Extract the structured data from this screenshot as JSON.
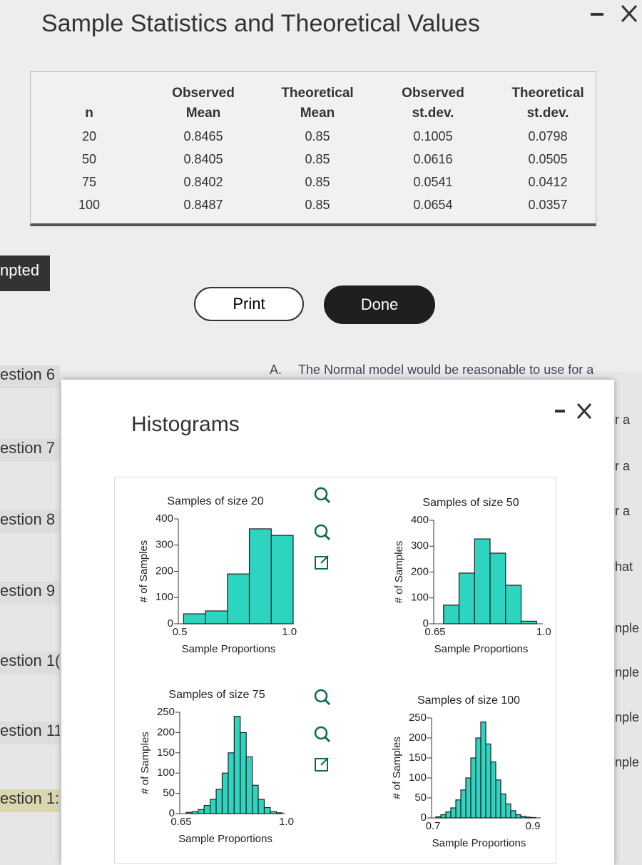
{
  "stats_window": {
    "title": "Sample Statistics and Theoretical Values",
    "table": {
      "header": [
        [
          "n"
        ],
        [
          "Observed",
          "Mean"
        ],
        [
          "Theoretical",
          "Mean"
        ],
        [
          "Observed",
          "st.dev."
        ],
        [
          "Theoretical",
          "st.dev."
        ]
      ],
      "rows": [
        [
          "20",
          "0.8465",
          "0.85",
          "0.1005",
          "0.0798"
        ],
        [
          "50",
          "0.8405",
          "0.85",
          "0.0616",
          "0.0505"
        ],
        [
          "75",
          "0.8402",
          "0.85",
          "0.0541",
          "0.0412"
        ],
        [
          "100",
          "0.8487",
          "0.85",
          "0.0654",
          "0.0357"
        ]
      ]
    },
    "buttons": [
      "Print",
      "Done"
    ]
  },
  "sidebar": [
    "npted",
    "estion 6",
    "estion 7",
    "estion 8",
    "estion 9",
    "estion 1(",
    "estion 11",
    "estion 1:"
  ],
  "background_text": {
    "option": "A.",
    "text": "The Normal model would be reasonable to use for a"
  },
  "right_edge": [
    "r a",
    "r a",
    "r a",
    "hat",
    "nple",
    "nple",
    "nple",
    "nple"
  ],
  "histograms_window": {
    "title": "Histograms"
  },
  "chart_data": [
    {
      "type": "histogram",
      "title": "Samples of size 20",
      "y_label": "# of Samples",
      "x_label": "Sample Proportions",
      "color": "#2dd4bf",
      "bins": [
        0.55,
        0.65,
        0.75,
        0.85,
        0.95,
        1.05
      ],
      "counts": [
        38,
        49,
        190,
        362,
        337
      ],
      "xlim": [
        0.5,
        1.05
      ],
      "xticks": [
        0.5,
        {
          "value": 1,
          "label": "1.0"
        }
      ],
      "ylim": [
        0,
        400
      ],
      "yticks": [
        0,
        100,
        200,
        300,
        400
      ]
    },
    {
      "type": "histogram",
      "title": "Samples of size 50",
      "y_label": "# of Samples",
      "x_label": "Sample Proportions",
      "color": "#2dd4bf",
      "bins": [
        0.7,
        0.75,
        0.8,
        0.85,
        0.9,
        0.95,
        1.0
      ],
      "counts": [
        72,
        196,
        328,
        273,
        149,
        10
      ],
      "xlim": [
        0.65,
        1.02
      ],
      "xticks": [
        0.65,
        {
          "value": 1,
          "label": "1.0"
        }
      ],
      "ylim": [
        0,
        400
      ],
      "yticks": [
        0,
        100,
        200,
        300,
        400
      ]
    },
    {
      "type": "histogram",
      "title": "Samples of size 75",
      "y_label": "# of Samples",
      "x_label": "Sample Proportions",
      "color": "#2dd4bf",
      "bins": [
        0.69,
        0.71,
        0.73,
        0.75,
        0.77,
        0.79,
        0.81,
        0.83,
        0.85,
        0.87,
        0.89,
        0.91,
        0.93,
        0.95,
        0.97,
        0.99,
        1.01
      ],
      "counts": [
        3,
        5,
        10,
        20,
        35,
        60,
        100,
        150,
        240,
        200,
        140,
        70,
        35,
        15,
        5,
        2
      ],
      "xlim": [
        0.65,
        1.02
      ],
      "xticks": [
        0.65,
        {
          "value": 1,
          "label": "1.0"
        }
      ],
      "ylim": [
        0,
        250
      ],
      "yticks": [
        0,
        50,
        100,
        150,
        200,
        250
      ]
    },
    {
      "type": "histogram",
      "title": "Samples of size 100",
      "y_label": "# of Samples",
      "x_label": "Sample Proportions",
      "color": "#2dd4bf",
      "bins": [
        0.72,
        0.73,
        0.74,
        0.75,
        0.76,
        0.77,
        0.78,
        0.79,
        0.8,
        0.81,
        0.82,
        0.83,
        0.84,
        0.85,
        0.86,
        0.87,
        0.88,
        0.89,
        0.9,
        0.91,
        0.92
      ],
      "counts": [
        3,
        8,
        15,
        25,
        45,
        70,
        100,
        150,
        200,
        240,
        185,
        140,
        95,
        60,
        35,
        18,
        8,
        4,
        2,
        1
      ],
      "xlim": [
        0.7,
        0.93
      ],
      "xticks": [
        0.7,
        0.9
      ],
      "ylim": [
        0,
        250
      ],
      "yticks": [
        0,
        50,
        100,
        150,
        200,
        250
      ]
    }
  ]
}
